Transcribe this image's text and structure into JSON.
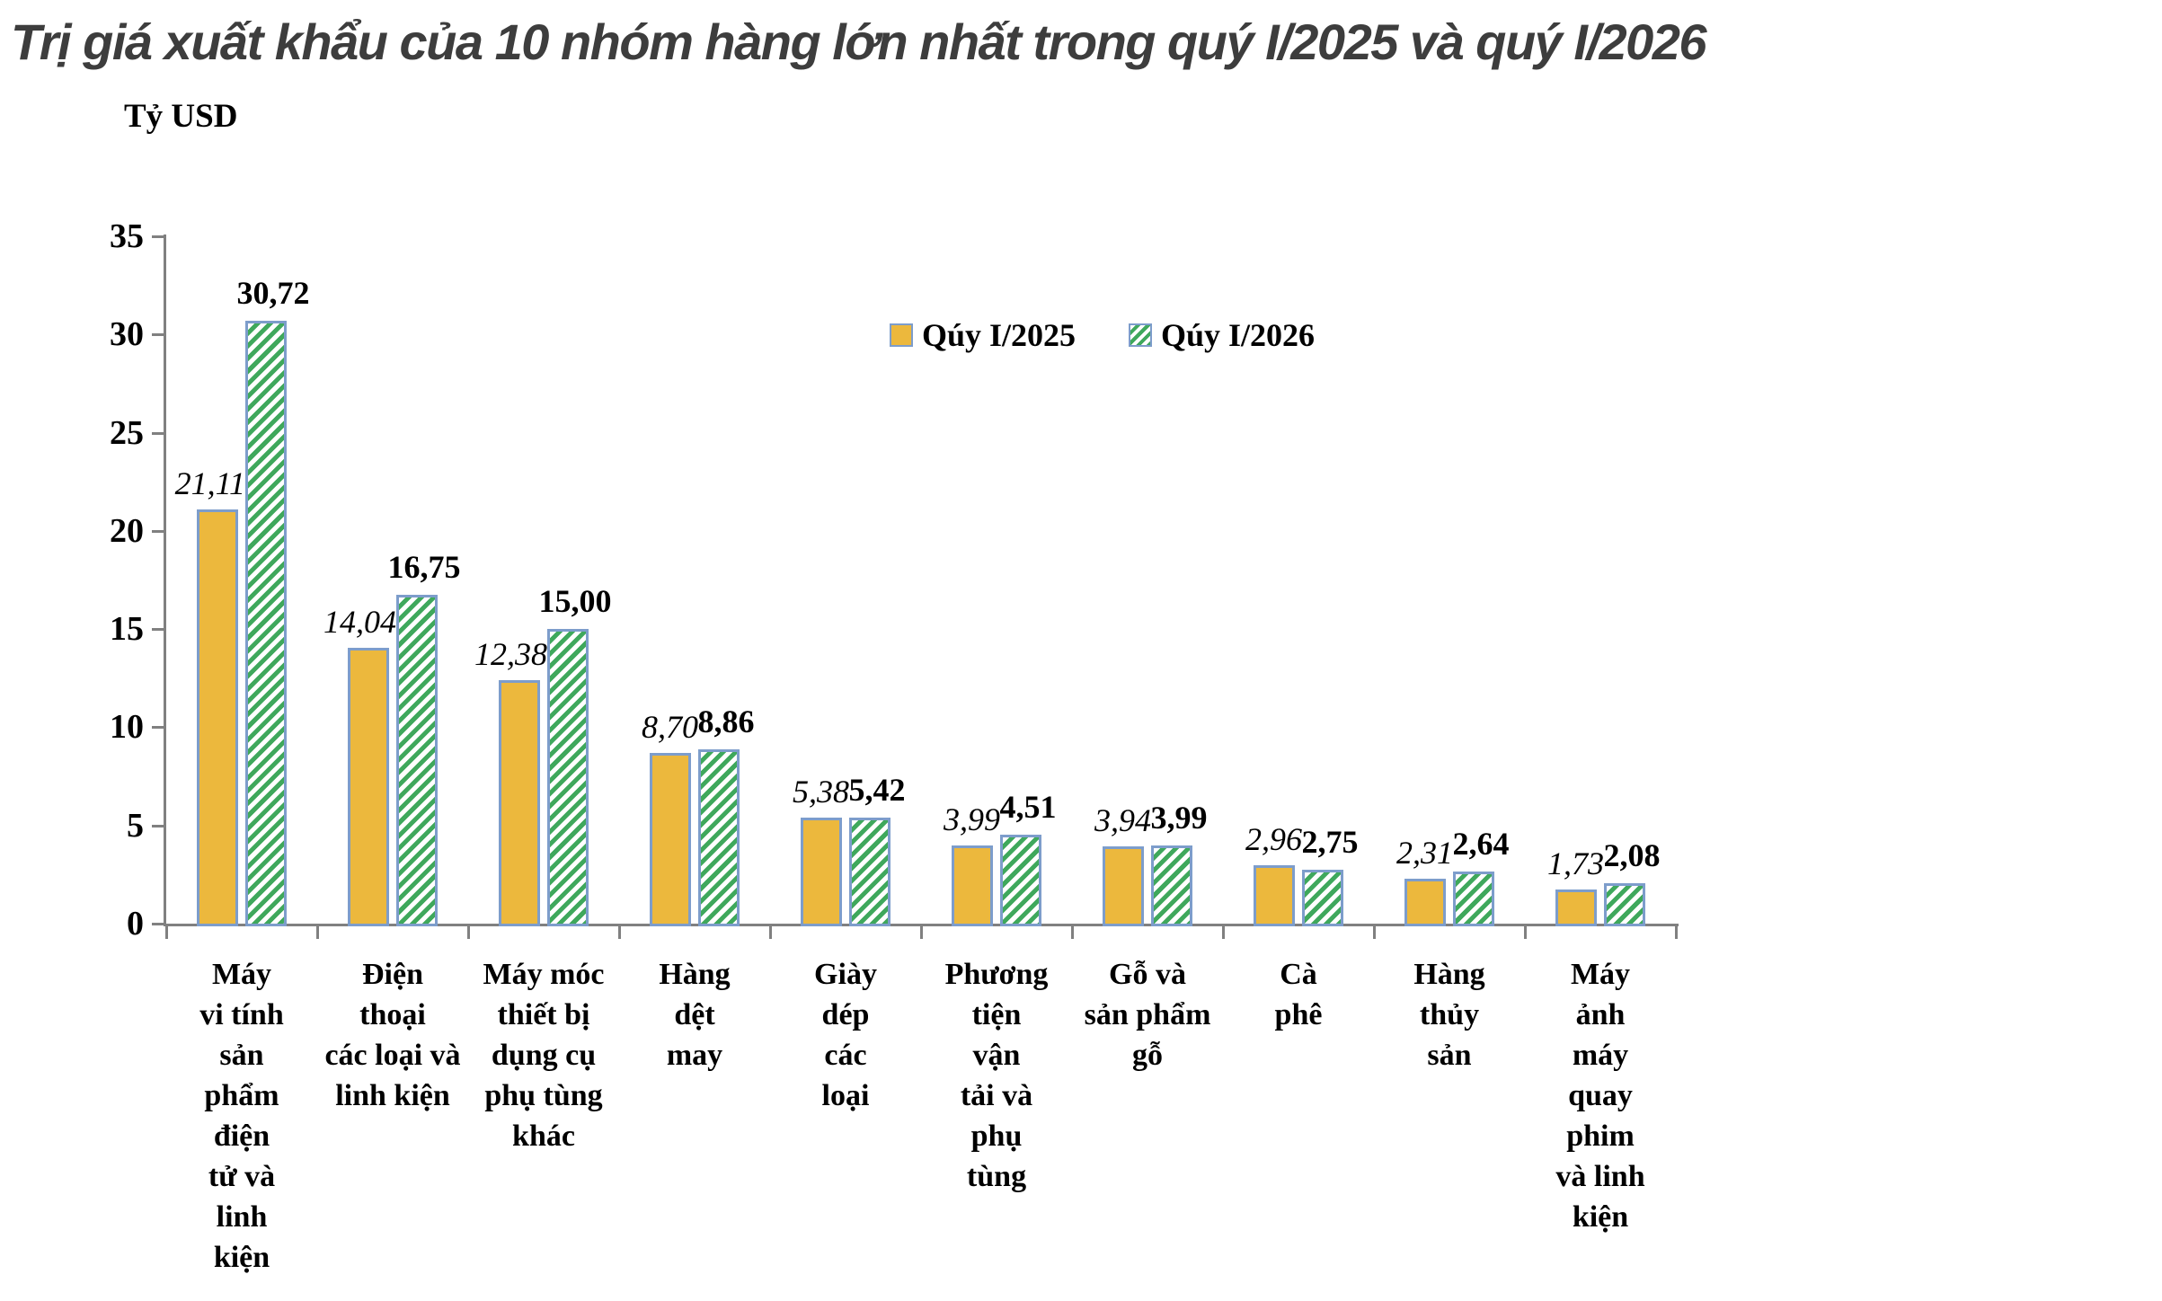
{
  "title": "Trị giá xuất khẩu của 10 nhóm hàng lớn nhất trong quý I/2025 và quý I/2026",
  "chart_data": {
    "type": "bar",
    "title": "Trị giá xuất khẩu của 10 nhóm hàng lớn nhất trong quý I/2025 và quý I/2026",
    "ylabel": "Tỷ USD",
    "xlabel": "",
    "ylim": [
      0,
      35
    ],
    "yticks": [
      0,
      5,
      10,
      15,
      20,
      25,
      30,
      35
    ],
    "grid": false,
    "legend_position": "top-center",
    "axis_color": "#808080",
    "bar_border_color": "#7D9DCB",
    "categories": [
      "Máy vi tính sản phẩm điện tử và linh kiện",
      "Điện thoại các loại và linh kiện",
      "Máy móc thiết bị dụng cụ phụ tùng khác",
      "Hàng dệt may",
      "Giày dép các loại",
      "Phương tiện vận tải và phụ tùng",
      "Gỗ và sản phẩm gỗ",
      "Cà phê",
      "Hàng thủy sản",
      "Máy ảnh máy quay phim và linh kiện"
    ],
    "category_label_lines": [
      "Máy\nvi tính\nsản\nphẩm\nđiện\ntử và\nlinh\nkiện",
      "Điện\nthoại\ncác loại và\nlinh kiện",
      "Máy móc\nthiết bị\ndụng cụ\nphụ tùng\nkhác",
      "Hàng\ndệt\nmay",
      "Giày\ndép\ncác\nloại",
      "Phương\ntiện\nvận\ntải và\nphụ\ntùng",
      "Gỗ và\nsản phẩm\ngỗ",
      "Cà\nphê",
      "Hàng\nthủy\nsản",
      "Máy\nảnh\nmáy\nquay\nphim\nvà linh\nkiện"
    ],
    "series": [
      {
        "name": "Qúy I/2025",
        "style": "solid",
        "fill_color": "#ECB83D",
        "values": [
          21.11,
          14.04,
          12.38,
          8.7,
          5.38,
          3.99,
          3.94,
          2.96,
          2.31,
          1.73
        ],
        "labels": [
          "21,11",
          "14,04",
          "12,38",
          "8,70",
          "5,38",
          "3,99",
          "3,94",
          "2,96",
          "2,31",
          "1,73"
        ]
      },
      {
        "name": "Qúy I/2026",
        "style": "hatch",
        "hatch_color": "#3FA85C",
        "values": [
          30.72,
          16.75,
          15.0,
          8.86,
          5.42,
          4.51,
          3.99,
          2.75,
          2.64,
          2.08
        ],
        "labels": [
          "30,72",
          "16,75",
          "15,00",
          "8,86",
          "5,42",
          "4,51",
          "3,99",
          "2,75",
          "2,64",
          "2,08"
        ]
      }
    ]
  }
}
